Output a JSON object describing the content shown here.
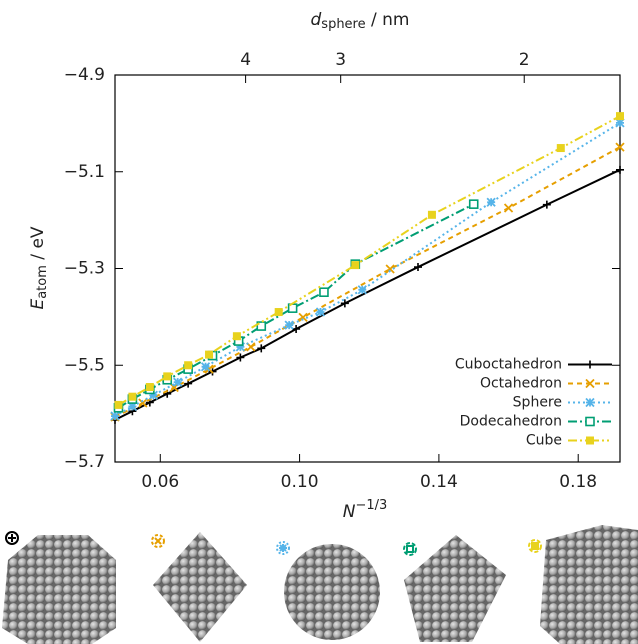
{
  "chart_data": {
    "type": "line",
    "x_label": {
      "symbol": "N",
      "superscript": "−1/3"
    },
    "y_label": {
      "symbol": "E",
      "subscript": "atom",
      "unit": " / eV"
    },
    "x2_label": {
      "symbol": "d",
      "subscript": "sphere",
      "unit": " / nm"
    },
    "xlim": [
      0.047,
      0.192
    ],
    "ylim": [
      -5.7,
      -4.9
    ],
    "xticks": [
      {
        "value": 0.06,
        "label": "0.06"
      },
      {
        "value": 0.1,
        "label": "0.10"
      },
      {
        "value": 0.14,
        "label": "0.14"
      },
      {
        "value": 0.18,
        "label": "0.18"
      }
    ],
    "x2ticks": [
      {
        "value": 0.0845,
        "label": "4"
      },
      {
        "value": 0.1118,
        "label": "3"
      },
      {
        "value": 0.1645,
        "label": "2"
      }
    ],
    "yticks": [
      {
        "value": -5.7,
        "label": "−5.7"
      },
      {
        "value": -5.5,
        "label": "−5.5"
      },
      {
        "value": -5.3,
        "label": "−5.3"
      },
      {
        "value": -5.1,
        "label": "−5.1"
      },
      {
        "value": -4.9,
        "label": "−4.9"
      }
    ],
    "legend_position": "lower right",
    "series": [
      {
        "name": "Cuboctahedron",
        "color": "#000000",
        "dash": "solid",
        "marker": "plus",
        "x": [
          0.047,
          0.052,
          0.057,
          0.062,
          0.068,
          0.075,
          0.083,
          0.089,
          0.099,
          0.113,
          0.134,
          0.171,
          0.192
        ],
        "values": [
          -5.613,
          -5.595,
          -5.577,
          -5.559,
          -5.538,
          -5.513,
          -5.484,
          -5.465,
          -5.425,
          -5.372,
          -5.297,
          -5.168,
          -5.096
        ]
      },
      {
        "name": "Octahedron",
        "color": "#e69f00",
        "dash": "dashed",
        "marker": "x",
        "x": [
          0.047,
          0.055,
          0.064,
          0.074,
          0.086,
          0.101,
          0.126,
          0.16,
          0.192
        ],
        "values": [
          -5.607,
          -5.578,
          -5.546,
          -5.508,
          -5.462,
          -5.401,
          -5.301,
          -5.175,
          -5.049
        ]
      },
      {
        "name": "Sphere",
        "color": "#56b4e9",
        "dash": "dotted",
        "marker": "star",
        "x": [
          0.047,
          0.052,
          0.058,
          0.065,
          0.073,
          0.083,
          0.097,
          0.106,
          0.118,
          0.155,
          0.192
        ],
        "values": [
          -5.605,
          -5.585,
          -5.562,
          -5.535,
          -5.503,
          -5.462,
          -5.417,
          -5.39,
          -5.344,
          -5.163,
          -4.999
        ]
      },
      {
        "name": "Dodecahedron",
        "color": "#009e73",
        "dash": "dashdot",
        "marker": "square-open",
        "x": [
          0.048,
          0.052,
          0.057,
          0.062,
          0.068,
          0.075,
          0.0825,
          0.089,
          0.098,
          0.107,
          0.116,
          0.15
        ],
        "values": [
          -5.588,
          -5.57,
          -5.55,
          -5.53,
          -5.508,
          -5.48,
          -5.45,
          -5.419,
          -5.382,
          -5.349,
          -5.291,
          -5.167
        ]
      },
      {
        "name": "Cube",
        "color": "#e8d21d",
        "dash": "dashdotdot",
        "marker": "square",
        "x": [
          0.048,
          0.052,
          0.057,
          0.062,
          0.068,
          0.074,
          0.082,
          0.094,
          0.116,
          0.138,
          0.175,
          0.192
        ],
        "values": [
          -5.582,
          -5.565,
          -5.545,
          -5.523,
          -5.5,
          -5.478,
          -5.44,
          -5.39,
          -5.293,
          -5.189,
          -5.051,
          -4.985
        ]
      }
    ]
  }
}
